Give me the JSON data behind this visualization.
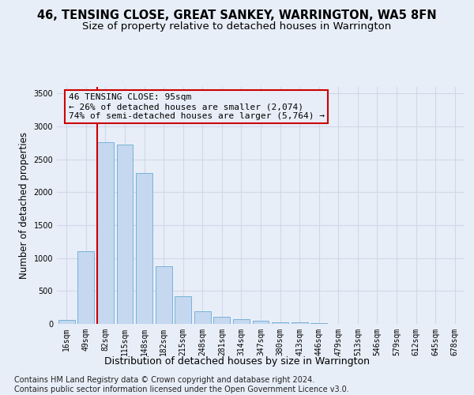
{
  "title": "46, TENSING CLOSE, GREAT SANKEY, WARRINGTON, WA5 8FN",
  "subtitle": "Size of property relative to detached houses in Warrington",
  "xlabel": "Distribution of detached houses by size in Warrington",
  "ylabel": "Number of detached properties",
  "categories": [
    "16sqm",
    "49sqm",
    "82sqm",
    "115sqm",
    "148sqm",
    "182sqm",
    "215sqm",
    "248sqm",
    "281sqm",
    "314sqm",
    "347sqm",
    "380sqm",
    "413sqm",
    "446sqm",
    "479sqm",
    "513sqm",
    "546sqm",
    "579sqm",
    "612sqm",
    "645sqm",
    "678sqm"
  ],
  "values": [
    55,
    1100,
    2760,
    2730,
    2290,
    875,
    420,
    195,
    110,
    75,
    50,
    30,
    22,
    10,
    5,
    3,
    2,
    1,
    1,
    0,
    0
  ],
  "bar_color": "#c5d8ef",
  "bar_edge_color": "#6aaad4",
  "vline_x_index": 2,
  "vline_color": "#cc0000",
  "annotation_text": "46 TENSING CLOSE: 95sqm\n← 26% of detached houses are smaller (2,074)\n74% of semi-detached houses are larger (5,764) →",
  "ylim": [
    0,
    3600
  ],
  "yticks": [
    0,
    500,
    1000,
    1500,
    2000,
    2500,
    3000,
    3500
  ],
  "bg_color": "#e8eef8",
  "grid_color": "#d0d8e8",
  "footer": "Contains HM Land Registry data © Crown copyright and database right 2024.\nContains public sector information licensed under the Open Government Licence v3.0.",
  "title_fontsize": 10.5,
  "subtitle_fontsize": 9.5,
  "ylabel_fontsize": 8.5,
  "xlabel_fontsize": 9,
  "tick_fontsize": 7,
  "annotation_fontsize": 8,
  "footer_fontsize": 7
}
